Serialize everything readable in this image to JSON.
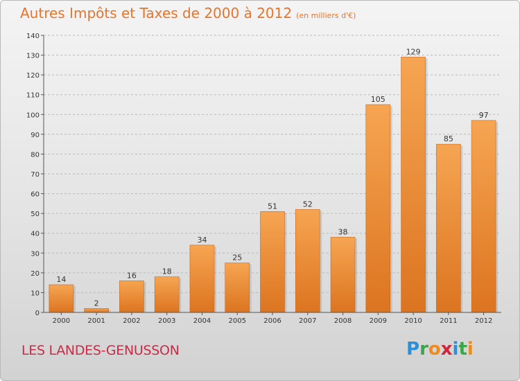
{
  "title": {
    "main": "Autres Impôts et Taxes de 2000 à 2012",
    "sub": "(en milliers d'€)"
  },
  "commune": "LES LANDES-GENUSSON",
  "logo": {
    "letters": [
      "P",
      "r",
      "o",
      "x",
      "i",
      "t",
      "i"
    ],
    "colors": [
      "#2f8fd6",
      "#3aa54a",
      "#f08a1c",
      "#d4243a",
      "#2f8fd6",
      "#3aa54a",
      "#f08a1c"
    ]
  },
  "chart_data": {
    "type": "bar",
    "categories": [
      "2000",
      "2001",
      "2002",
      "2003",
      "2004",
      "2005",
      "2006",
      "2007",
      "2008",
      "2009",
      "2010",
      "2011",
      "2012"
    ],
    "values": [
      14,
      2,
      16,
      18,
      34,
      25,
      51,
      52,
      38,
      105,
      129,
      85,
      97
    ],
    "data_labels": [
      "14",
      "2",
      "16",
      "18",
      "34",
      "25",
      "51",
      "52",
      "38",
      "105",
      "129",
      "85",
      "97"
    ],
    "title": "Autres Impôts et Taxes de 2000 à 2012",
    "xlabel": "",
    "ylabel": "",
    "ylim": [
      0,
      140
    ],
    "yticks": [
      0,
      10,
      20,
      30,
      40,
      50,
      60,
      70,
      80,
      90,
      100,
      110,
      120,
      130,
      140
    ],
    "grid": "horizontal dashed",
    "colors": {
      "bar_top": "#f6a552",
      "bar_bottom": "#dc7420",
      "grid": "#b9b9b9",
      "axis": "#555555"
    }
  }
}
